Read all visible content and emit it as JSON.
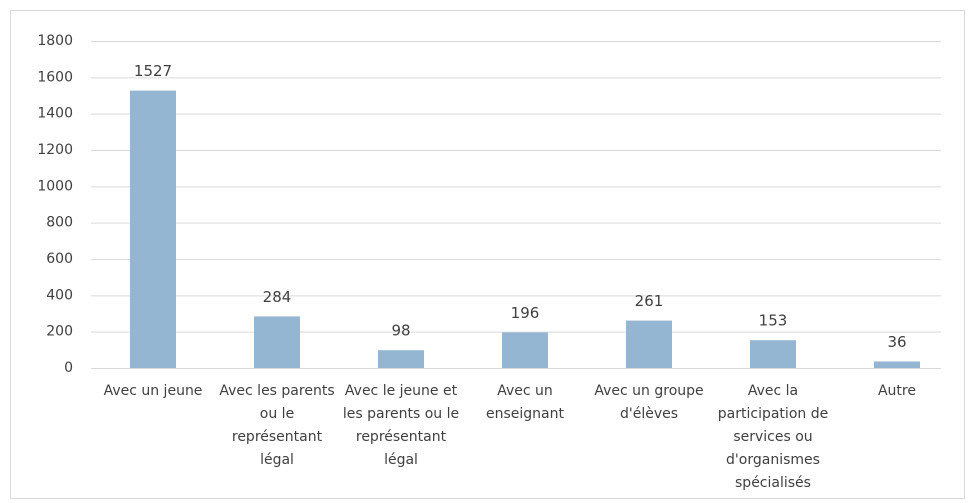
{
  "chart_data": {
    "type": "bar",
    "categories": [
      "Avec un jeune",
      "Avec les parents ou le représentant légal",
      "Avec le jeune et les parents ou le représentant légal",
      "Avec un enseignant",
      "Avec un groupe d'élèves",
      "Avec la participation de services ou d'organismes spécialisés",
      "Autre"
    ],
    "values": [
      1527,
      284,
      98,
      196,
      261,
      153,
      36
    ],
    "color": "#94b6d2",
    "ylim": [
      0,
      1800
    ],
    "yticks": [
      0,
      200,
      400,
      600,
      800,
      1000,
      1200,
      1400,
      1600,
      1800
    ],
    "grid": true
  }
}
